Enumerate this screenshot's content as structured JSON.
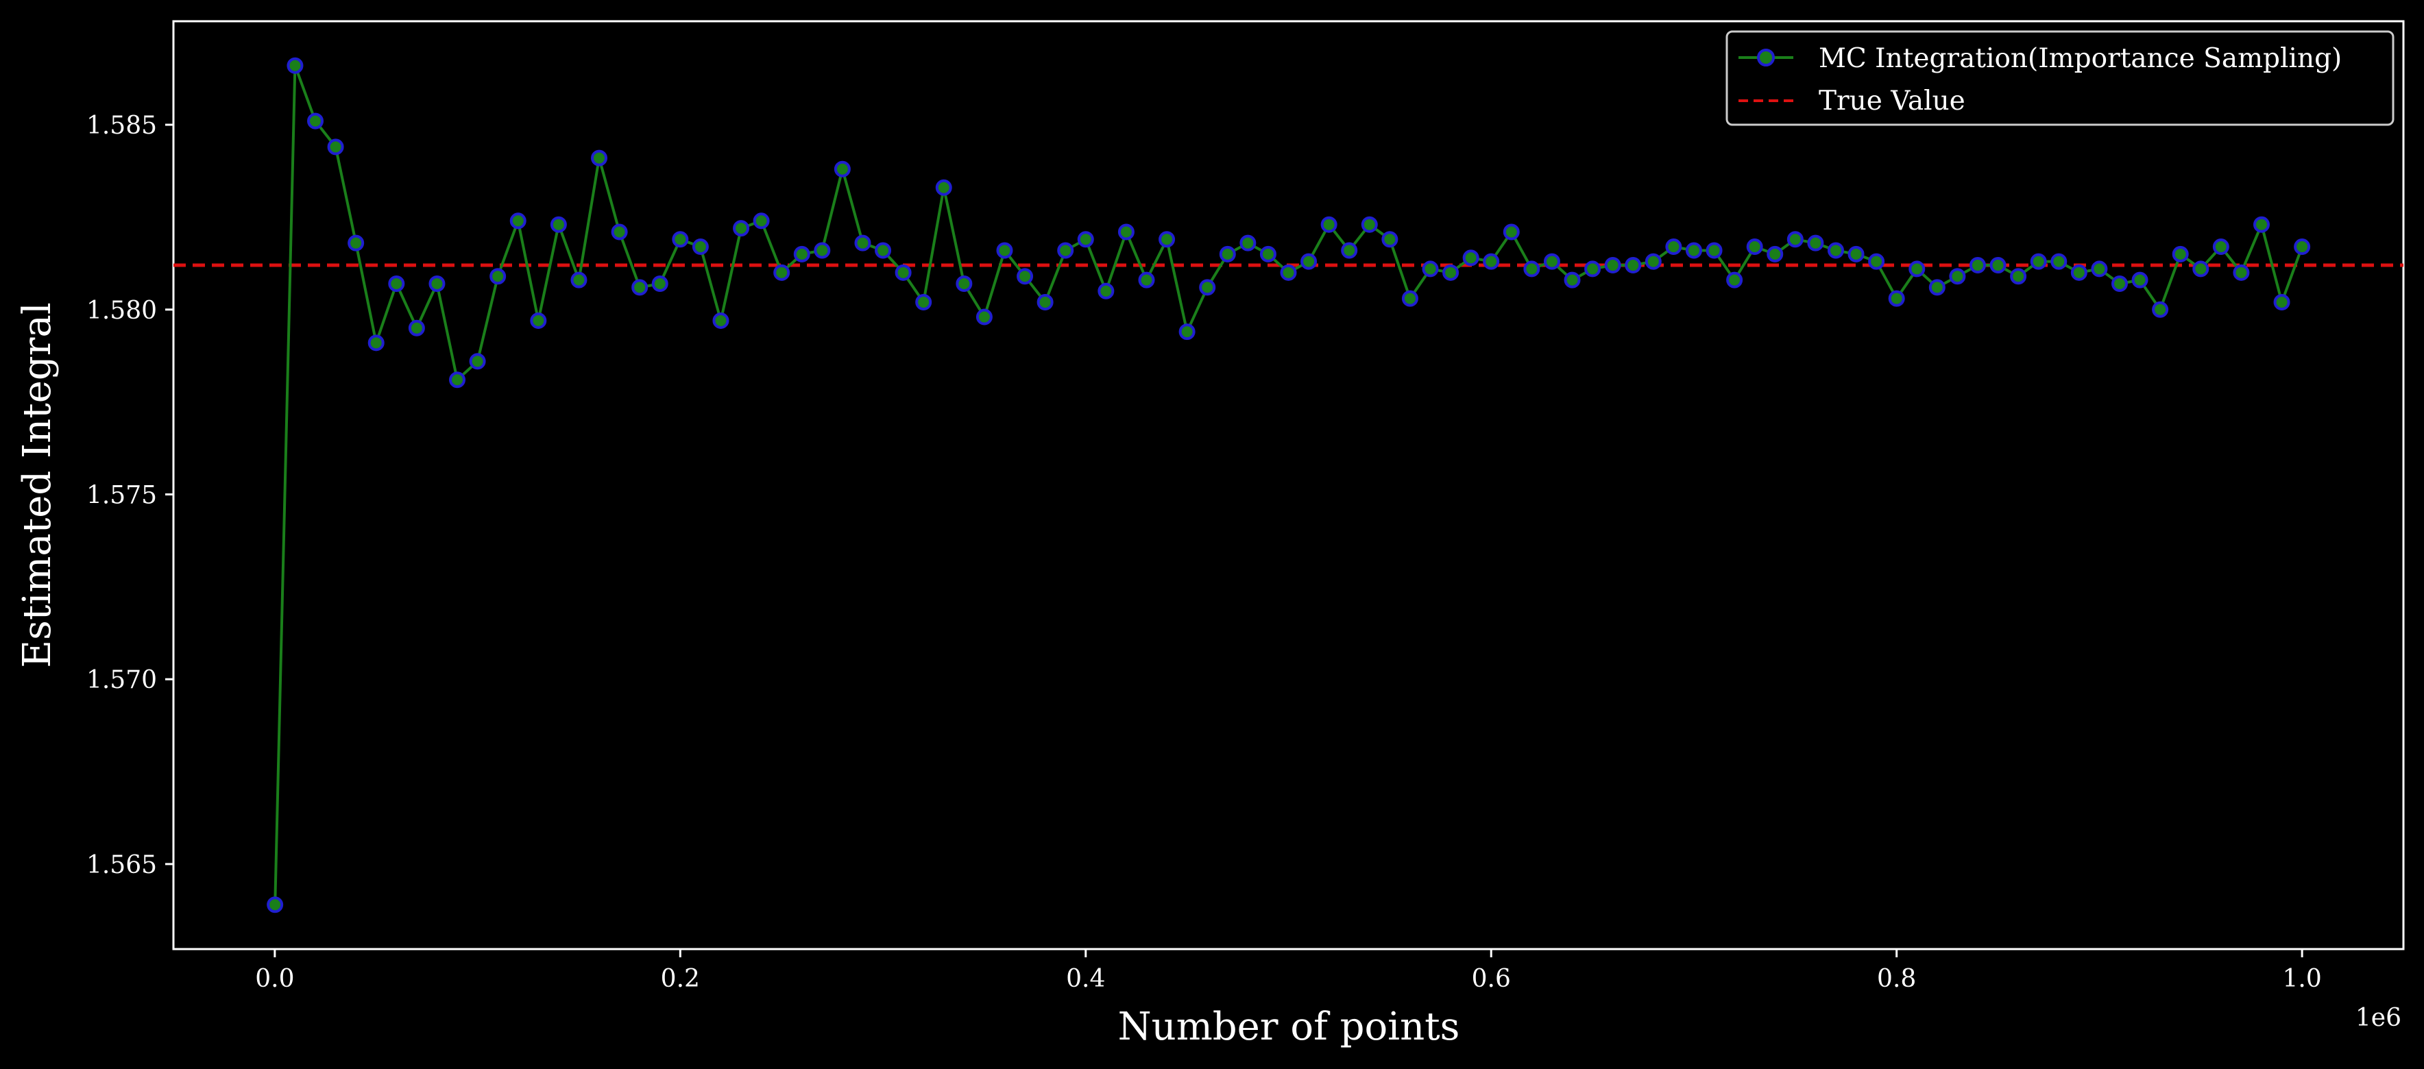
{
  "chart_data": {
    "type": "line",
    "title": "",
    "xlabel": "Number of points",
    "ylabel": "Estimated Integral",
    "x_offset_label": "1e6",
    "xlim": [
      -50000,
      1050000
    ],
    "ylim": [
      1.5627,
      1.5878
    ],
    "x_tick_values": [
      0.0,
      200000,
      400000,
      600000,
      800000,
      1000000
    ],
    "x_tick_labels": [
      "0.0",
      "0.2",
      "0.4",
      "0.6",
      "0.8",
      "1.0"
    ],
    "y_tick_values": [
      1.565,
      1.57,
      1.575,
      1.58,
      1.585
    ],
    "y_tick_labels": [
      "1.565",
      "1.570",
      "1.575",
      "1.580",
      "1.585"
    ],
    "grid": false,
    "legend_position": "top-right",
    "x": [
      100,
      10000,
      20000,
      30000,
      40000,
      50000,
      60000,
      70000,
      80000,
      90000,
      100000,
      110000,
      120000,
      130000,
      140000,
      150000,
      160000,
      170000,
      180000,
      190000,
      200000,
      210000,
      220000,
      230000,
      240000,
      250000,
      260000,
      270000,
      280000,
      290000,
      300000,
      310000,
      320000,
      330000,
      340000,
      350000,
      360000,
      370000,
      380000,
      390000,
      400000,
      410000,
      420000,
      430000,
      440000,
      450000,
      460000,
      470000,
      480000,
      490000,
      500000,
      510000,
      520000,
      530000,
      540000,
      550000,
      560000,
      570000,
      580000,
      590000,
      600000,
      610000,
      620000,
      630000,
      640000,
      650000,
      660000,
      670000,
      680000,
      690000,
      700000,
      710000,
      720000,
      730000,
      740000,
      750000,
      760000,
      770000,
      780000,
      790000,
      800000,
      810000,
      820000,
      830000,
      840000,
      850000,
      860000,
      870000,
      880000,
      890000,
      900000,
      910000,
      920000,
      930000,
      940000,
      950000,
      960000,
      970000,
      980000,
      990000,
      1000000
    ],
    "series": [
      {
        "name": "MC Integration(Importance Sampling)",
        "style": "line-marker",
        "line_color": "#1a7f1a",
        "marker_face": "#1a7f1a",
        "marker_edge": "#1f1fd0",
        "values": [
          1.5639,
          1.5866,
          1.5851,
          1.5844,
          1.5818,
          1.5791,
          1.5807,
          1.5795,
          1.5807,
          1.5781,
          1.5786,
          1.5809,
          1.5824,
          1.5797,
          1.5823,
          1.5808,
          1.5841,
          1.5821,
          1.5806,
          1.5807,
          1.5819,
          1.5817,
          1.5797,
          1.5822,
          1.5824,
          1.581,
          1.5815,
          1.5816,
          1.5838,
          1.5818,
          1.5816,
          1.581,
          1.5802,
          1.5833,
          1.5807,
          1.5798,
          1.5816,
          1.5809,
          1.5802,
          1.5816,
          1.5819,
          1.5805,
          1.5821,
          1.5808,
          1.5819,
          1.5794,
          1.5806,
          1.5815,
          1.5818,
          1.5815,
          1.581,
          1.5813,
          1.5823,
          1.5816,
          1.5823,
          1.5819,
          1.5803,
          1.5811,
          1.581,
          1.5814,
          1.5813,
          1.5821,
          1.5811,
          1.5813,
          1.5808,
          1.5811,
          1.5812,
          1.5812,
          1.5813,
          1.5817,
          1.5816,
          1.5816,
          1.5808,
          1.5817,
          1.5815,
          1.5819,
          1.5818,
          1.5816,
          1.5815,
          1.5813,
          1.5803,
          1.5811,
          1.5806,
          1.5809,
          1.5812,
          1.5812,
          1.5809,
          1.5813,
          1.5813,
          1.581,
          1.5811,
          1.5807,
          1.5808,
          1.58,
          1.5815,
          1.5811,
          1.5817,
          1.581,
          1.5823,
          1.5802,
          1.5817
        ]
      },
      {
        "name": "True Value",
        "style": "dashed-hline",
        "line_color": "#dd1111",
        "value": 1.5812
      }
    ]
  },
  "colors": {
    "background": "#000000",
    "axes_spine": "#ffffff",
    "text": "#ffffff",
    "legend_border": "#cccccc"
  }
}
